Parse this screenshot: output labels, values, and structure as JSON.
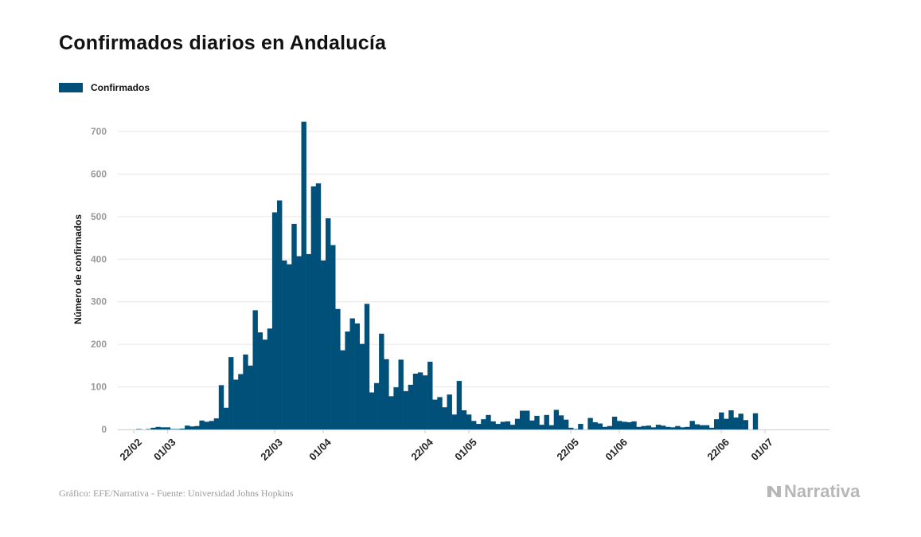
{
  "title": "Confirmados diarios en Andalucía",
  "legend": {
    "label": "Confirmados",
    "color": "#00507a"
  },
  "footer": {
    "source": "Gráfico: EFE/Narrativa - Fuente: Universidad Johns Hopkins"
  },
  "brand": {
    "name": "Narrativa",
    "icon": "narrativa-logo-icon"
  },
  "chart_data": {
    "type": "bar",
    "title": "Confirmados diarios en Andalucía",
    "xlabel": "",
    "ylabel": "Número de confirmados",
    "ylim": [
      0,
      760
    ],
    "yticks": [
      0,
      100,
      200,
      300,
      400,
      500,
      600,
      700
    ],
    "grid": true,
    "legend_position": "top-left",
    "color": "#00507a",
    "start_date": "22/02",
    "xticks": [
      {
        "label": "22/02",
        "index": 0
      },
      {
        "label": "01/03",
        "index": 7
      },
      {
        "label": "22/03",
        "index": 29
      },
      {
        "label": "01/04",
        "index": 39
      },
      {
        "label": "22/04",
        "index": 60
      },
      {
        "label": "01/05",
        "index": 69
      },
      {
        "label": "22/05",
        "index": 90
      },
      {
        "label": "01/06",
        "index": 100
      },
      {
        "label": "22/06",
        "index": 121
      },
      {
        "label": "01/07",
        "index": 130
      }
    ],
    "series": [
      {
        "name": "Confirmados",
        "values": [
          0,
          1,
          0,
          1,
          4,
          6,
          5,
          5,
          1,
          1,
          2,
          9,
          7,
          8,
          21,
          18,
          20,
          26,
          104,
          51,
          170,
          117,
          130,
          176,
          150,
          280,
          228,
          211,
          237,
          510,
          538,
          397,
          388,
          483,
          407,
          723,
          412,
          571,
          578,
          397,
          496,
          433,
          283,
          186,
          230,
          261,
          249,
          201,
          295,
          87,
          109,
          225,
          165,
          78,
          99,
          164,
          90,
          105,
          131,
          134,
          127,
          159,
          70,
          76,
          52,
          82,
          35,
          114,
          45,
          35,
          20,
          13,
          24,
          34,
          19,
          13,
          18,
          19,
          11,
          25,
          44,
          44,
          21,
          32,
          11,
          34,
          10,
          46,
          33,
          23,
          4,
          1,
          13,
          0,
          27,
          17,
          14,
          6,
          8,
          30,
          20,
          18,
          17,
          19,
          6,
          8,
          9,
          5,
          11,
          9,
          6,
          5,
          8,
          5,
          6,
          20,
          12,
          10,
          10,
          4,
          24,
          40,
          25,
          45,
          28,
          37,
          22,
          0,
          38
        ]
      }
    ]
  }
}
